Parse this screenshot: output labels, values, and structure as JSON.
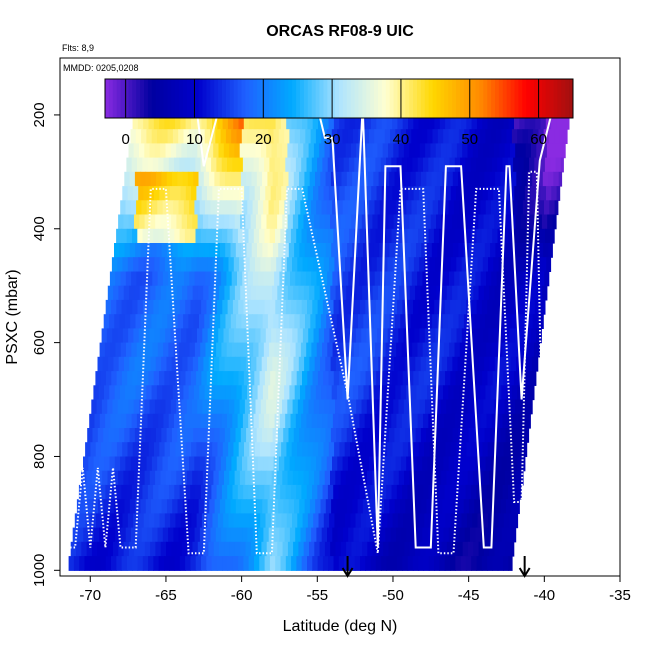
{
  "chart_data": {
    "type": "heatmap",
    "title": "ORCAS RF08-9 UIC",
    "flights_note": "Flts: 8,9",
    "date_note": "MMDD: 0205,0208",
    "xlabel": "Latitude (deg N)",
    "ylabel": "PSXC (mbar)",
    "xlim": [
      -72,
      -35
    ],
    "ylim": [
      1010,
      100
    ],
    "y_scale": "reversed",
    "x_ticks": [
      -70,
      -65,
      -60,
      -55,
      -50,
      -45,
      -40,
      -35
    ],
    "x_tick_labels": [
      "-70",
      "-65",
      "-60",
      "-55",
      "-50",
      "-45",
      "-40",
      "-35"
    ],
    "y_ticks": [
      200,
      400,
      600,
      800,
      1000
    ],
    "y_tick_labels": [
      "200",
      "400",
      "600",
      "800",
      "1000"
    ],
    "colorbar": {
      "range": [
        -3,
        65
      ],
      "ticks": [
        0,
        10,
        20,
        30,
        40,
        50,
        60
      ],
      "tick_labels": [
        "0",
        "10",
        "20",
        "30",
        "40",
        "50",
        "60"
      ],
      "colors": [
        "#8a2be2",
        "#0000a0",
        "#0000cd",
        "#1f60ff",
        "#00aaff",
        "#aee4ff",
        "#ffffd0",
        "#ffd700",
        "#ff8c00",
        "#ff0000",
        "#a01010"
      ]
    },
    "arrows_latitude": [
      -53,
      -41.3
    ],
    "grid": false,
    "legend": "colorbar-top"
  }
}
